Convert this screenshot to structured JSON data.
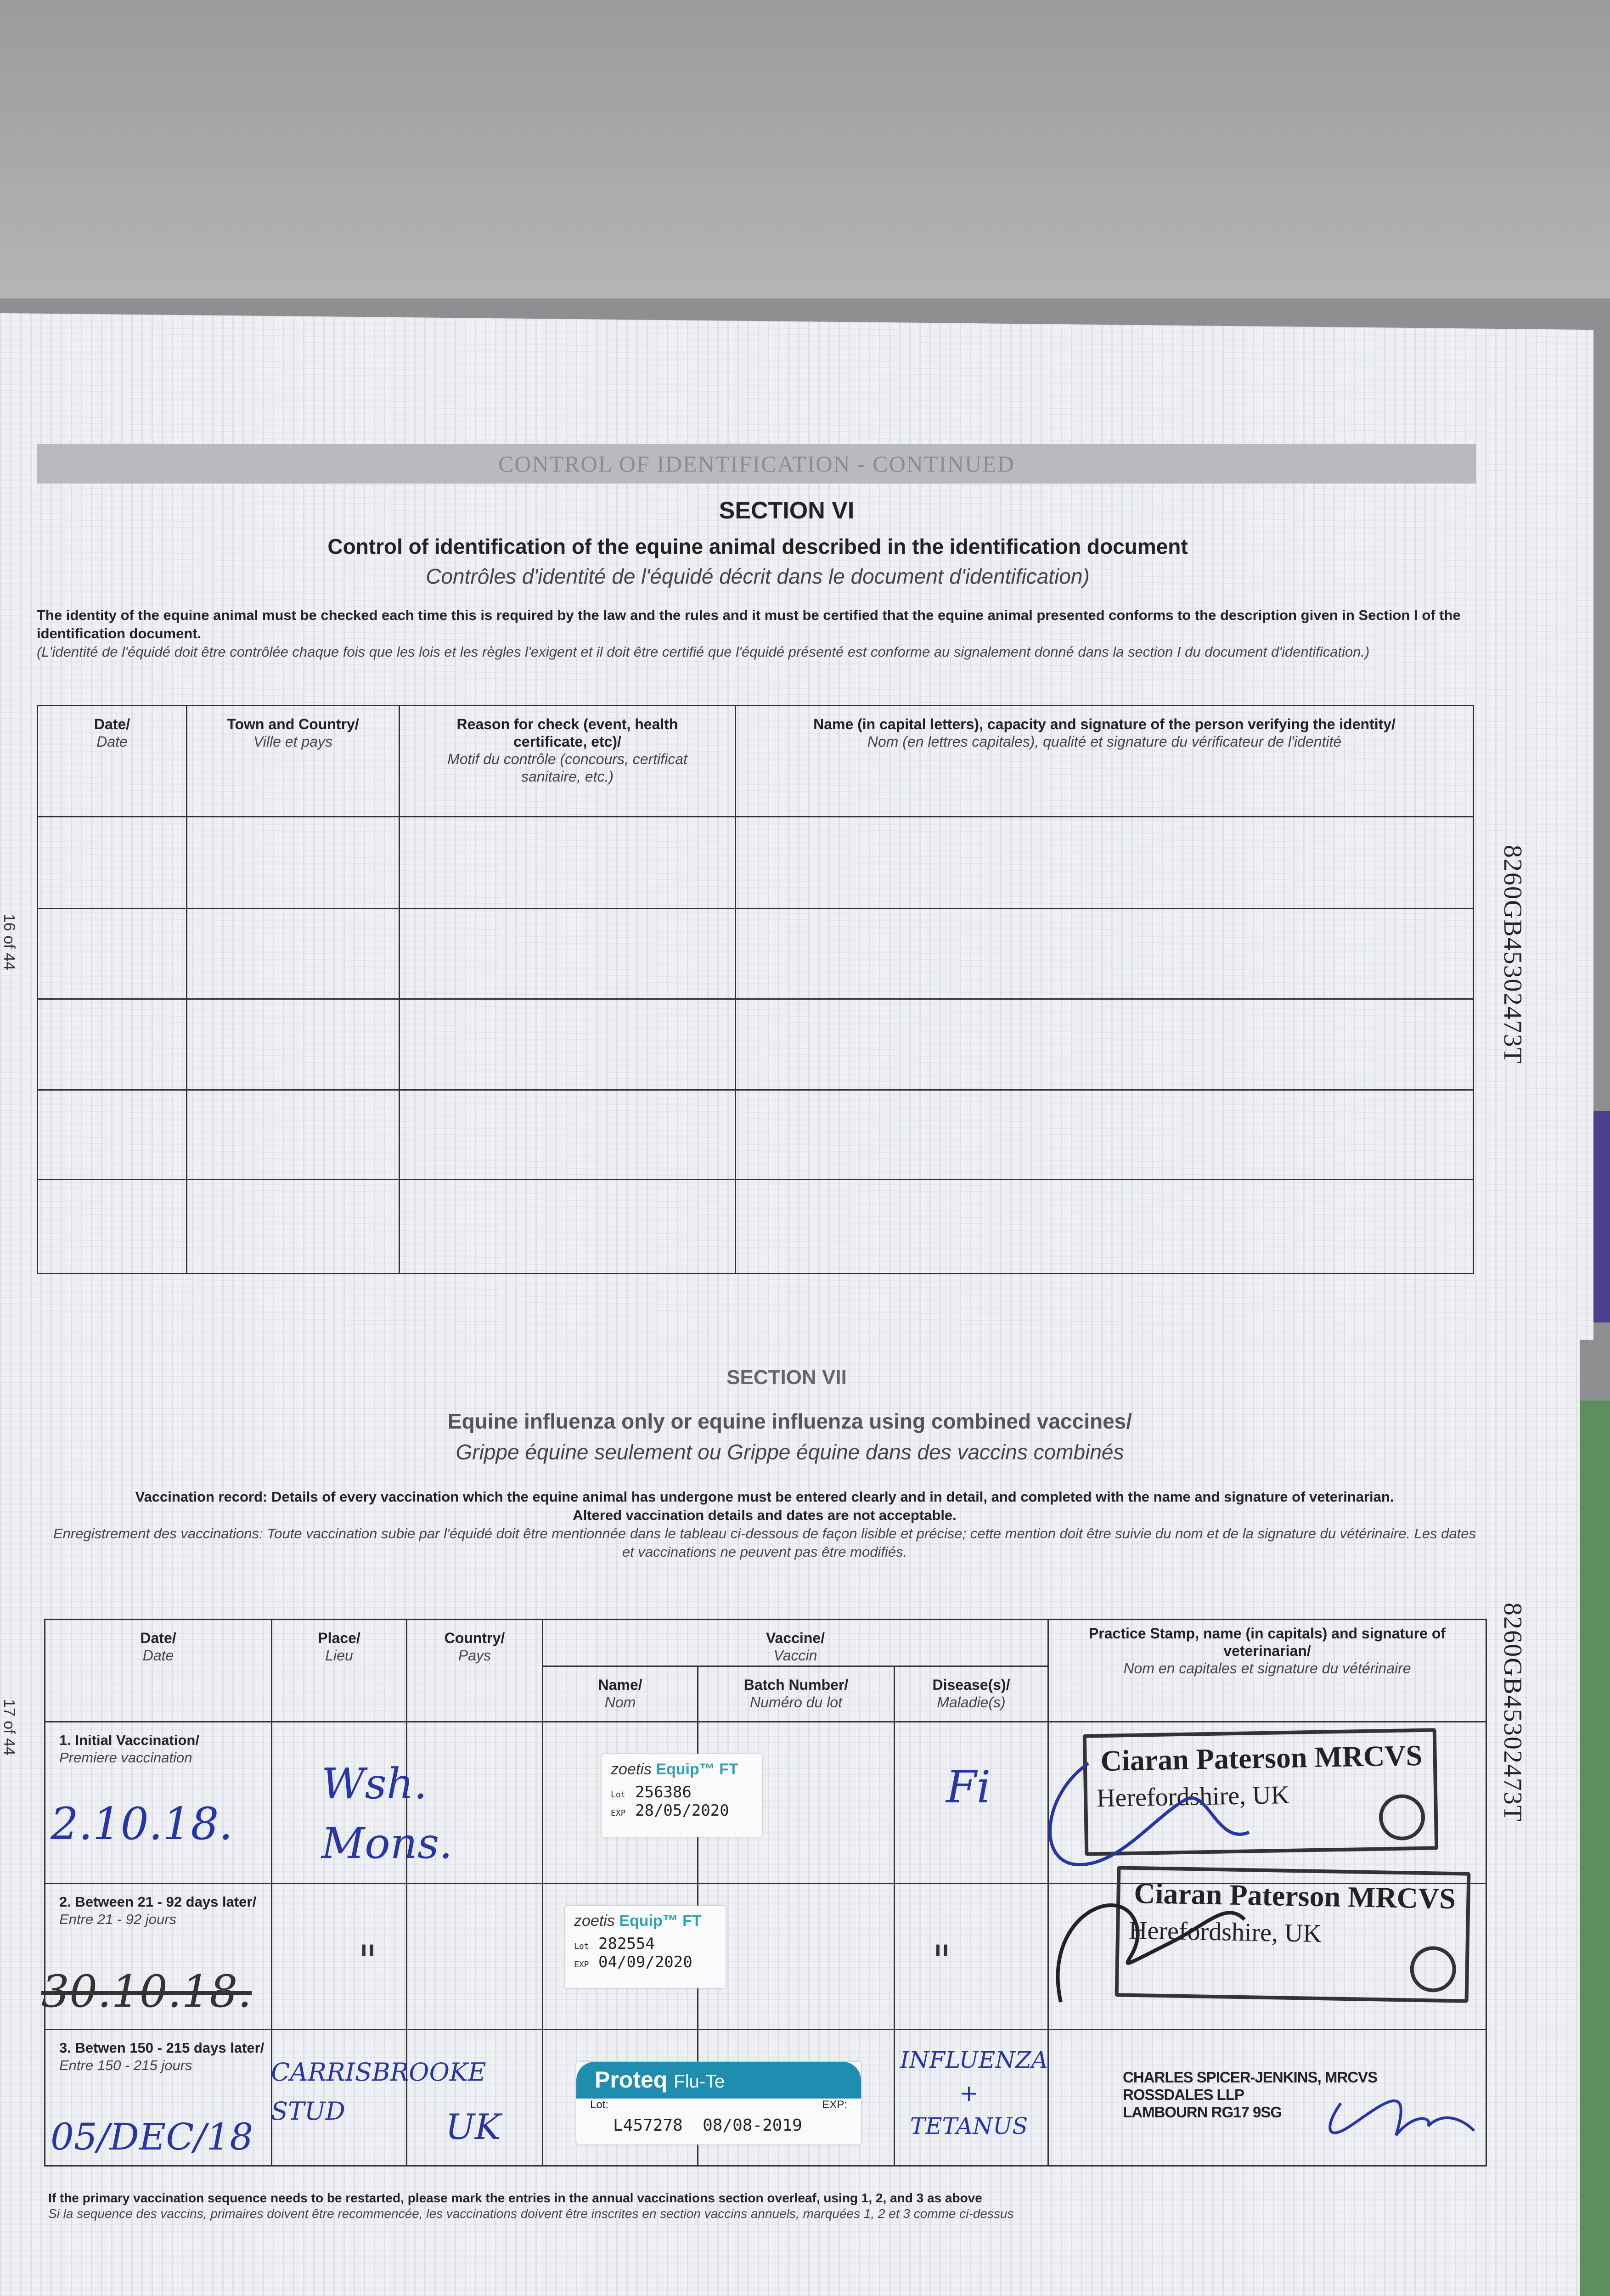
{
  "upper_page": {
    "band_title": "CONTROL OF IDENTIFICATION - CONTINUED",
    "section": "SECTION VI",
    "title": "Control of identification of the equine animal described in the identification document",
    "title_fr": "Contrôles d'identité de l'équidé décrit dans le document d'identification)",
    "intro": "The identity of the equine animal must be checked each time this is required by the law and the rules and it must be certified that the equine animal presented conforms to the description given in Section I of the identification document.",
    "intro_fr": "(L'identité de l'équidé doit être contrôlée chaque fois que les lois et les règles l'exigent et il doit être certifié que l'équidé présenté est conforme au signalement donné dans la section I du document d'identification.)",
    "columns": [
      {
        "en": "Date/",
        "fr": "Date"
      },
      {
        "en": "Town and Country/",
        "fr": "Ville et pays"
      },
      {
        "en": "Reason for check (event, health certificate, etc)/",
        "fr": "Motif du contrôle (concours, certificat sanitaire, etc.)"
      },
      {
        "en": "Name (in capital letters), capacity and signature of the person verifying the identity/",
        "fr": "Nom (en lettres capitales), qualité et signature du vérificateur de l'identité"
      }
    ],
    "page_number": "16 of 44",
    "document_id": "8260GB45302473T"
  },
  "lower_page": {
    "section": "SECTION VII",
    "title": "Equine influenza only or equine influenza using combined vaccines/",
    "title_fr": "Grippe équine seulement ou Grippe équine dans des vaccins combinés",
    "intro": "Vaccination record: Details of every vaccination which the equine animal has undergone must be entered clearly and in detail, and completed with the name and signature of veterinarian.",
    "intro2": "Altered vaccination details and dates are not acceptable.",
    "intro_fr": "Enregistrement des vaccinations: Toute vaccination subie par l'équidé doit être mentionnée dans le tableau ci-dessous de façon lisible et précise; cette mention doit être suivie du nom et de la signature du vétérinaire. Les dates et vaccinations ne peuvent pas être modifiés.",
    "headers": {
      "date": {
        "en": "Date/",
        "fr": "Date"
      },
      "place": {
        "en": "Place/",
        "fr": "Lieu"
      },
      "country": {
        "en": "Country/",
        "fr": "Pays"
      },
      "vaccine": {
        "en": "Vaccine/",
        "fr": "Vaccin"
      },
      "name": {
        "en": "Name/",
        "fr": "Nom"
      },
      "batch": {
        "en": "Batch Number/",
        "fr": "Numéro du lot"
      },
      "disease": {
        "en": "Disease(s)/",
        "fr": "Maladie(s)"
      },
      "stamp": {
        "en": "Practice Stamp, name (in capitals) and signature of veterinarian/",
        "fr": "Nom en capitales et signature du vétérinaire"
      }
    },
    "rows": [
      {
        "label": "1. Initial Vaccination/",
        "label_fr": "Premiere vaccination",
        "date": "2.10.18.",
        "place": "Wsh. Mons.",
        "country": "",
        "vaccine_brand": "zoetis",
        "vaccine_name": "Equip™ FT",
        "lot_label": "Lot",
        "lot": "256386",
        "exp_label": "EXP",
        "exp": "28/05/2020",
        "disease": "Fi",
        "stamp_name": "Ciaran Paterson MRCVS",
        "stamp_location": "Herefordshire, UK"
      },
      {
        "label": "2. Between 21 - 92 days later/",
        "label_fr": "Entre 21 - 92 jours",
        "date": "30.10.18.",
        "place": "\"",
        "country": "",
        "vaccine_brand": "zoetis",
        "vaccine_name": "Equip™ FT",
        "lot_label": "Lot",
        "lot": "282554",
        "exp_label": "EXP",
        "exp": "04/09/2020",
        "disease": "\"",
        "stamp_name": "Ciaran Paterson MRCVS",
        "stamp_location": "Herefordshire, UK"
      },
      {
        "label": "3. Betwen 150 - 215 days later/",
        "label_fr": "Entre 150 - 215 jours",
        "date": "05/DEC/18",
        "place": "CARRISBROOKE STUD",
        "country": "UK",
        "vaccine_brand": "Proteq",
        "vaccine_name": "Flu-Te",
        "lot_label": "Lot:",
        "exp_label": "EXP:",
        "lot": "L457278",
        "exp": "08/08-2019",
        "disease": "INFLUENZA + TETANUS",
        "vet_lines": [
          "CHARLES SPICER-JENKINS, MRCVS",
          "ROSSDALES LLP",
          "LAMBOURN RG17 9SG"
        ]
      }
    ],
    "footnote": "If the primary vaccination sequence needs to be restarted, please mark the entries in the annual vaccinations section overleaf, using 1, 2, and 3 as above",
    "footnote_fr": "Si la sequence des vaccins, primaires doivent être recommencée, les vaccinations doivent être inscrites en section vaccins annuels, marquées 1, 2 et 3 comme ci-dessus",
    "page_number": "17 of 44",
    "document_id": "8260GB45302473T"
  },
  "colors": {
    "ink_blue": "#2636a6",
    "label_teal": "#1f8db0"
  }
}
